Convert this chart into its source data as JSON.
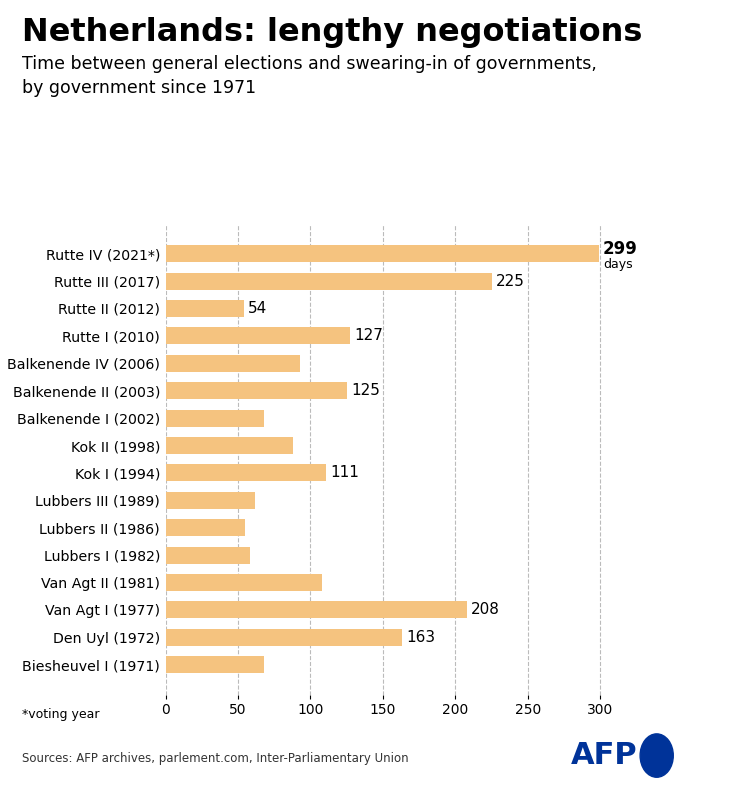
{
  "title": "Netherlands: lengthy negotiations",
  "subtitle": "Time between general elections and swearing-in of governments,\nby government since 1971",
  "categories": [
    "Rutte IV (2021*)",
    "Rutte III (2017)",
    "Rutte II (2012)",
    "Rutte I (2010)",
    "Balkenende IV (2006)",
    "Balkenende II (2003)",
    "Balkenende I (2002)",
    "Kok II (1998)",
    "Kok I (1994)",
    "Lubbers III (1989)",
    "Lubbers II (1986)",
    "Lubbers I (1982)",
    "Van Agt II (1981)",
    "Van Agt I (1977)",
    "Den Uyl (1972)",
    "Biesheuvel I (1971)"
  ],
  "values": [
    299,
    225,
    54,
    127,
    93,
    125,
    68,
    88,
    111,
    62,
    55,
    58,
    108,
    208,
    163,
    68
  ],
  "show_label": [
    true,
    true,
    true,
    true,
    false,
    true,
    false,
    false,
    true,
    false,
    false,
    false,
    false,
    true,
    true,
    false
  ],
  "bar_color": "#F5C37F",
  "bg_color": "#FFFFFF",
  "xlim": [
    0,
    315
  ],
  "xticks": [
    0,
    50,
    100,
    150,
    200,
    250,
    300
  ],
  "footnote": "*voting year",
  "source": "Sources: AFP archives, parlement.com, Inter-Parliamentary Union",
  "title_fontsize": 23,
  "subtitle_fontsize": 12.5,
  "bar_label_fontsize": 11,
  "axis_fontsize": 10,
  "afp_blue": "#003399"
}
